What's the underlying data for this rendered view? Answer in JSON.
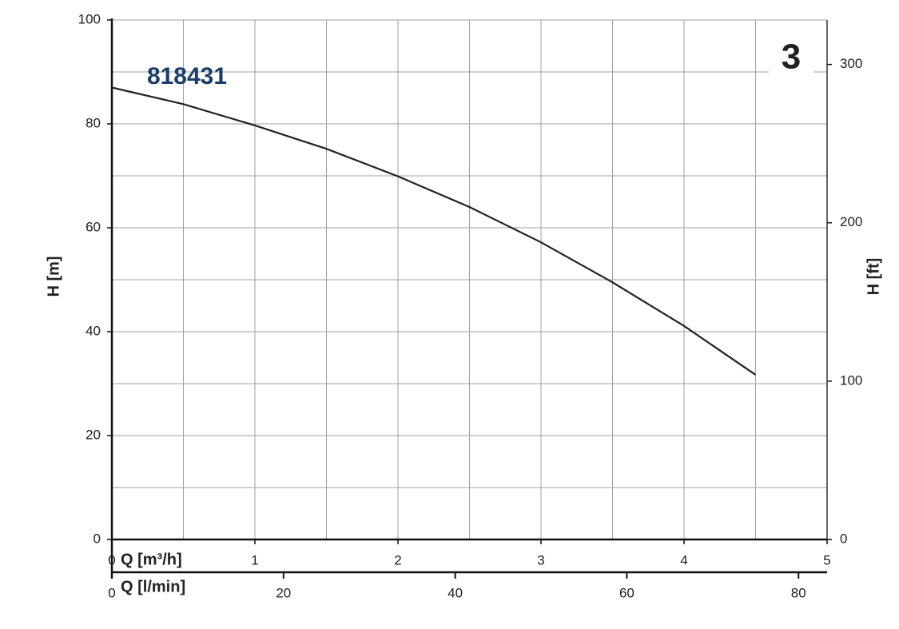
{
  "chart_data": {
    "type": "line",
    "curve_label": "818431",
    "panel_number": "3",
    "xlabel": "Q [m³/h]",
    "x2label": "Q [l/min]",
    "ylabel": "H [m]",
    "y2label": "H [ft]",
    "x": [
      0,
      0.5,
      1,
      1.5,
      2,
      2.5,
      3,
      3.5,
      4,
      4.5
    ],
    "values": [
      87,
      83.8,
      79.7,
      75.2,
      69.9,
      64,
      57.2,
      49.5,
      41.1,
      31.7
    ],
    "color": "#222222",
    "xlim": [
      0,
      5
    ],
    "xticks": [
      0,
      1,
      2,
      3,
      4,
      5
    ],
    "xminor": [
      0.5,
      1.5,
      2.5,
      3.5,
      4.5
    ],
    "x2lim": [
      0,
      83.33
    ],
    "x2ticks": [
      0,
      20,
      40,
      60,
      80
    ],
    "ylim": [
      0,
      100
    ],
    "yticks": [
      0,
      20,
      40,
      60,
      80,
      100
    ],
    "yminor": [
      10,
      30,
      50,
      70,
      90
    ],
    "y2lim": [
      0,
      328.08
    ],
    "y2ticks": [
      0,
      100,
      200,
      300
    ],
    "grid": true
  }
}
